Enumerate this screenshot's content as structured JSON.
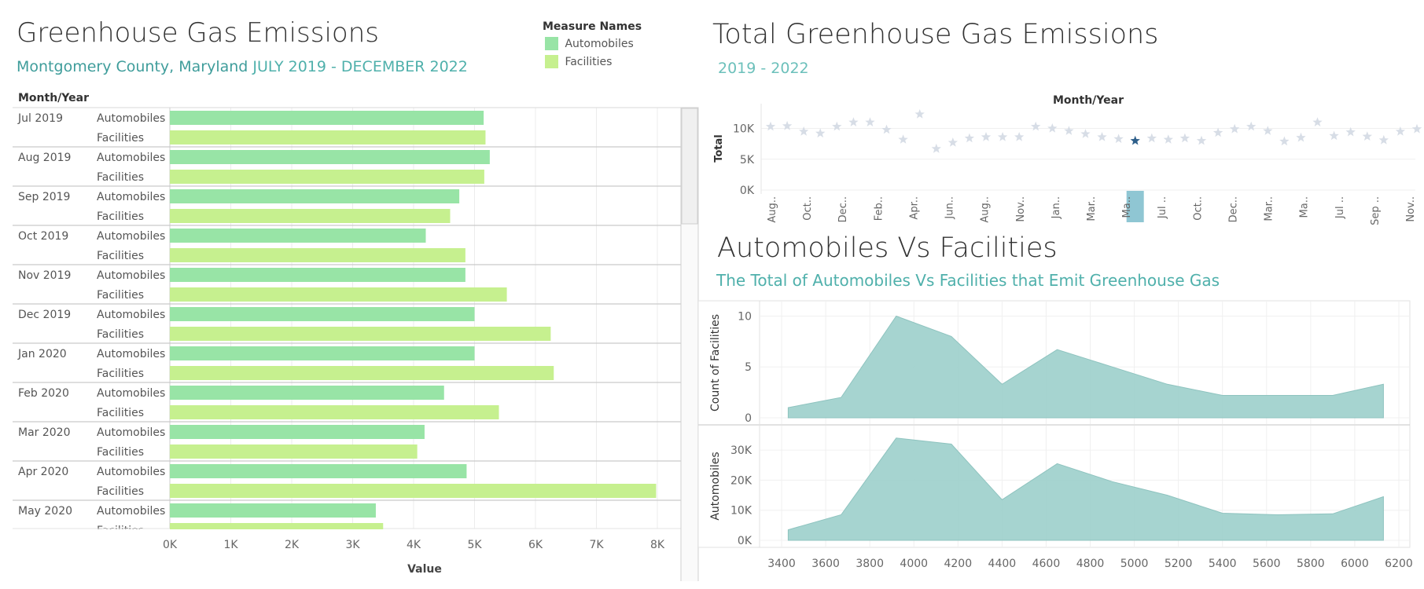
{
  "left": {
    "title": "Greenhouse Gas Emissions",
    "subtitle_place": "Montgomery County, Maryland",
    "subtitle_range": "JULY 2019 - DECEMBER 2022",
    "legend": {
      "title": "Measure Names",
      "items": [
        {
          "label": "Automobiles",
          "color": "#98e4a6"
        },
        {
          "label": "Facilities",
          "color": "#c6f08f"
        }
      ]
    },
    "row_header": "Month/Year",
    "axis_title": "Value"
  },
  "right_top": {
    "title": "Total Greenhouse Gas Emissions",
    "subtitle": "2019 - 2022",
    "axis_header": "Month/Year"
  },
  "right_bottom": {
    "title": "Automobiles Vs Facilities",
    "subtitle": "The Total of Automobiles Vs Facilities that Emit Greenhouse Gas"
  },
  "chart_data": [
    {
      "type": "bar",
      "orientation": "horizontal",
      "title": "Greenhouse Gas Emissions",
      "xlabel": "Value",
      "ylabel": "Month/Year",
      "xlim": [
        0,
        8000
      ],
      "x_ticks": [
        "0K",
        "1K",
        "2K",
        "3K",
        "4K",
        "5K",
        "6K",
        "7K",
        "8K"
      ],
      "categories": [
        "Jul 2019",
        "Aug 2019",
        "Sep 2019",
        "Oct 2019",
        "Nov 2019",
        "Dec 2019",
        "Jan 2020",
        "Feb 2020",
        "Mar 2020",
        "Apr 2020",
        "May 2020"
      ],
      "series": [
        {
          "name": "Automobiles",
          "color": "#98e4a6",
          "values": [
            5150,
            5250,
            4750,
            4200,
            4850,
            5000,
            5000,
            4500,
            4180,
            4870,
            3380
          ]
        },
        {
          "name": "Facilities",
          "color": "#c6f08f",
          "values": [
            5180,
            5160,
            4600,
            4850,
            5530,
            6250,
            6300,
            5400,
            4060,
            7980,
            3500
          ]
        }
      ],
      "grid": true,
      "legend": "top-right"
    },
    {
      "type": "scatter",
      "marker": "star",
      "title": "Total Greenhouse Gas Emissions",
      "ylabel": "Total",
      "xlabel": "Month/Year",
      "ylim": [
        0,
        13000
      ],
      "y_ticks": [
        "10K",
        "5K",
        "0K"
      ],
      "x_tick_labels": [
        "Aug..",
        "Oct..",
        "Dec..",
        "Feb..",
        "Apr..",
        "Jun..",
        "Aug..",
        "Nov..",
        "Jan..",
        "Mar..",
        "Ma..",
        "Jul ..",
        "Oct..",
        "Dec..",
        "Mar..",
        "Ma..",
        "Jul ..",
        "Sep ..",
        "Nov.."
      ],
      "values": [
        10300,
        10400,
        9500,
        9200,
        10300,
        11000,
        11000,
        9800,
        8200,
        12300,
        6700,
        7700,
        8400,
        8600,
        8600,
        8600,
        10300,
        10000,
        9600,
        9100,
        8600,
        8300,
        8000,
        8400,
        8200,
        8400,
        8000,
        9300,
        9900,
        10300,
        9600,
        7900,
        8500,
        11000,
        8800,
        9400,
        8700,
        8100,
        9500,
        9900
      ],
      "highlight_index": 22,
      "grid": true
    },
    {
      "type": "area",
      "title": "Automobiles Vs Facilities",
      "xlabel": "",
      "xlim": [
        3300,
        6250
      ],
      "x_ticks": [
        3400,
        3600,
        3800,
        4000,
        4200,
        4400,
        4600,
        4800,
        5000,
        5200,
        5400,
        5600,
        5800,
        6000,
        6200
      ],
      "panels": [
        {
          "ylabel": "Count of Facilities",
          "ylim": [
            0,
            10.5
          ],
          "y_ticks": [
            0,
            5,
            10
          ],
          "x": [
            3430,
            3670,
            3920,
            4170,
            4400,
            4650,
            4900,
            5150,
            5400,
            5650,
            5900,
            6130
          ],
          "values": [
            1,
            2,
            10,
            8,
            3.3,
            6.7,
            5,
            3.3,
            2.2,
            2.2,
            2.2,
            3.3
          ]
        },
        {
          "ylabel": "Automobiles",
          "ylim": [
            0,
            35000
          ],
          "y_ticks": [
            "0K",
            "10K",
            "20K",
            "30K"
          ],
          "x": [
            3430,
            3670,
            3920,
            4170,
            4400,
            4650,
            4900,
            5150,
            5400,
            5650,
            5900,
            6130
          ],
          "values": [
            3500,
            8500,
            34000,
            32000,
            13500,
            25500,
            19500,
            15000,
            9000,
            8500,
            8800,
            14500
          ]
        }
      ],
      "color": "#9ccfcb",
      "grid": true
    }
  ]
}
